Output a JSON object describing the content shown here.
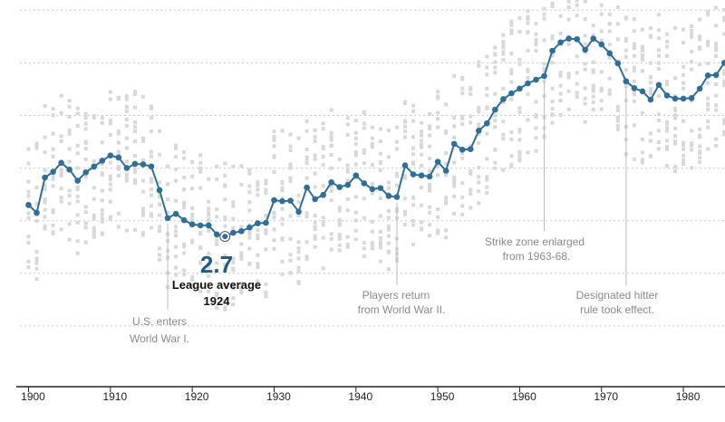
{
  "chart_data": {
    "type": "line",
    "title": "",
    "xlabel": "",
    "ylabel": "",
    "xlim": [
      1899.5,
      1985.5
    ],
    "ylim": [
      0.6,
      7.6
    ],
    "x_ticks": [
      1900,
      1910,
      1920,
      1930,
      1940,
      1950,
      1960,
      1970,
      1980
    ],
    "x_tick_labels": [
      "1900",
      "1910",
      "1920",
      "1930",
      "1940",
      "1950",
      "1960",
      "1970",
      "1980"
    ],
    "y_gridlines": [
      1,
      2,
      3,
      4,
      5,
      6,
      7
    ],
    "grid": true,
    "colors": {
      "line": "#2f6f97",
      "dots": "#d8d8d8",
      "grid": "#c8c8c8",
      "highlight_value": "#215b86"
    },
    "series": [
      {
        "x": [
          1900,
          1901,
          1902,
          1903,
          1904,
          1905,
          1906,
          1907,
          1908,
          1909,
          1910,
          1911,
          1912,
          1913,
          1914,
          1915,
          1916,
          1917,
          1918,
          1919,
          1920,
          1921,
          1922,
          1923,
          1924,
          1925,
          1926,
          1927,
          1928,
          1929,
          1930,
          1931,
          1932,
          1933,
          1934,
          1935,
          1936,
          1937,
          1938,
          1939,
          1940,
          1941,
          1942,
          1943,
          1944,
          1945,
          1946,
          1947,
          1948,
          1949,
          1950,
          1951,
          1952,
          1953,
          1954,
          1955,
          1956,
          1957,
          1958,
          1959,
          1960,
          1961,
          1962,
          1963,
          1964,
          1965,
          1966,
          1967,
          1968,
          1969,
          1970,
          1971,
          1972,
          1973,
          1974,
          1975,
          1976,
          1977,
          1978,
          1979,
          1980,
          1981,
          1982,
          1983,
          1984,
          1985
        ],
        "y": [
          3.3,
          3.15,
          3.82,
          3.93,
          4.1,
          3.97,
          3.76,
          3.92,
          4.03,
          4.14,
          4.24,
          4.2,
          4.0,
          4.08,
          4.07,
          4.03,
          3.58,
          3.05,
          3.13,
          3.01,
          2.93,
          2.91,
          2.91,
          2.74,
          2.7,
          2.77,
          2.8,
          2.87,
          2.95,
          2.96,
          3.39,
          3.37,
          3.38,
          3.17,
          3.63,
          3.41,
          3.49,
          3.73,
          3.64,
          3.68,
          3.86,
          3.71,
          3.6,
          3.62,
          3.47,
          3.45,
          4.05,
          3.88,
          3.86,
          3.84,
          4.12,
          3.95,
          4.46,
          4.35,
          4.36,
          4.71,
          4.85,
          5.11,
          5.31,
          5.42,
          5.51,
          5.61,
          5.68,
          5.75,
          6.23,
          6.39,
          6.46,
          6.45,
          6.25,
          6.46,
          6.35,
          6.18,
          5.99,
          5.65,
          5.52,
          5.46,
          5.3,
          5.58,
          5.38,
          5.32,
          5.32,
          5.33,
          5.51,
          5.76,
          5.77,
          6.0
        ],
        "label_points": [
          {
            "year": 1924,
            "value": 2.7
          }
        ]
      }
    ],
    "highlight": {
      "year": 1924,
      "value_text": "2.7",
      "label_line1": "League average",
      "label_line2": "1924"
    },
    "annotations": [
      {
        "year": 1917,
        "line1": "U.S. enters",
        "line2": "World War I."
      },
      {
        "year": 1945,
        "line1": "Players return",
        "line2": "from World War II."
      },
      {
        "year": 1963,
        "line1": "Strike zone enlarged",
        "line2": "from 1963-68."
      },
      {
        "year": 1973,
        "line1": "Designated hitter",
        "line2": "rule took effect."
      }
    ]
  }
}
